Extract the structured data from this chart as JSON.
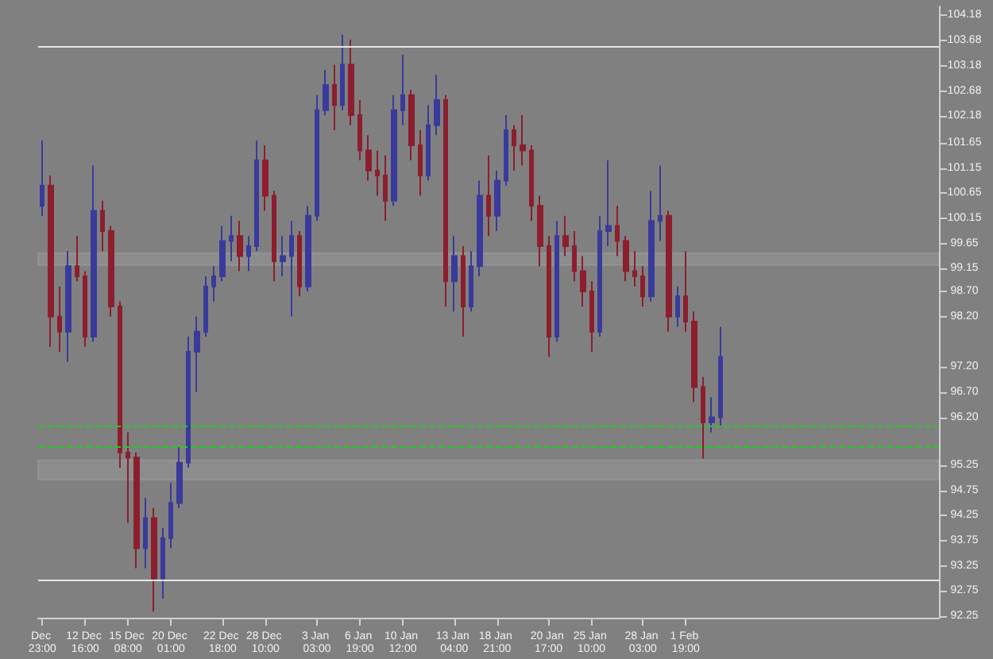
{
  "chart_data": {
    "type": "candlestick",
    "categories": [
      "Dec 23:00",
      null,
      null,
      null,
      null,
      "12 Dec 16:00",
      null,
      null,
      null,
      null,
      "15 Dec 08:00",
      null,
      null,
      null,
      null,
      "20 Dec 01:00",
      null,
      null,
      null,
      null,
      null,
      "22 Dec 18:00",
      null,
      null,
      null,
      null,
      "28 Dec 10:00",
      null,
      null,
      null,
      null,
      null,
      "3 Jan 03:00",
      null,
      null,
      null,
      null,
      "6 Jan 19:00",
      null,
      null,
      null,
      null,
      "10 Jan 12:00",
      null,
      null,
      null,
      null,
      null,
      "13 Jan 04:00",
      null,
      null,
      null,
      null,
      "18 Jan 21:00",
      null,
      null,
      null,
      null,
      null,
      "20 Jan 17:00",
      null,
      null,
      null,
      null,
      "25 Jan 10:00",
      null,
      null,
      null,
      null,
      null,
      "28 Jan 03:00",
      null,
      null,
      null,
      null,
      "1 Feb 19:00",
      null,
      null,
      null,
      null,
      null,
      null,
      null,
      null,
      null,
      null,
      null,
      null,
      null,
      null,
      null,
      null,
      null,
      null,
      null,
      null,
      null,
      null,
      null,
      null,
      null,
      null,
      null,
      null,
      null
    ],
    "ohlc": [
      [
        100.4,
        101.7,
        100.2,
        100.8
      ],
      [
        100.8,
        101.0,
        97.6,
        98.2
      ],
      [
        98.2,
        98.8,
        97.5,
        97.9
      ],
      [
        97.9,
        99.5,
        97.3,
        99.2
      ],
      [
        99.2,
        99.8,
        98.9,
        99.0
      ],
      [
        99.0,
        99.1,
        97.6,
        97.8
      ],
      [
        97.8,
        101.2,
        97.7,
        100.3
      ],
      [
        100.3,
        100.5,
        99.5,
        99.9
      ],
      [
        99.9,
        100.0,
        98.2,
        98.4
      ],
      [
        98.4,
        98.5,
        95.2,
        95.5
      ],
      [
        95.5,
        95.9,
        94.1,
        95.4
      ],
      [
        95.4,
        95.5,
        93.2,
        93.6
      ],
      [
        93.6,
        94.6,
        93.2,
        94.2
      ],
      [
        94.2,
        94.4,
        92.34,
        93.0
      ],
      [
        93.0,
        94.0,
        92.6,
        93.8
      ],
      [
        93.8,
        94.9,
        93.6,
        94.5
      ],
      [
        94.5,
        95.6,
        94.4,
        95.3
      ],
      [
        95.3,
        97.8,
        95.2,
        97.5
      ],
      [
        97.5,
        98.2,
        96.7,
        97.9
      ],
      [
        97.9,
        99.0,
        97.8,
        98.8
      ],
      [
        98.8,
        99.2,
        98.5,
        99.0
      ],
      [
        99.0,
        100.0,
        98.9,
        99.7
      ],
      [
        99.7,
        100.2,
        99.3,
        99.8
      ],
      [
        99.8,
        100.1,
        99.1,
        99.4
      ],
      [
        99.4,
        99.8,
        99.1,
        99.6
      ],
      [
        99.6,
        101.7,
        99.5,
        101.3
      ],
      [
        101.3,
        101.6,
        100.3,
        100.6
      ],
      [
        100.6,
        100.7,
        98.9,
        99.3
      ],
      [
        99.3,
        99.8,
        99.0,
        99.4
      ],
      [
        99.4,
        100.1,
        98.2,
        99.8
      ],
      [
        99.8,
        99.9,
        98.6,
        98.8
      ],
      [
        98.8,
        100.4,
        98.7,
        100.2
      ],
      [
        100.2,
        102.6,
        100.1,
        102.3
      ],
      [
        102.3,
        103.1,
        102.2,
        102.8
      ],
      [
        102.8,
        103.2,
        101.9,
        102.4
      ],
      [
        102.4,
        103.8,
        102.3,
        103.2
      ],
      [
        103.2,
        103.7,
        102.0,
        102.2
      ],
      [
        102.2,
        102.5,
        101.3,
        101.5
      ],
      [
        101.5,
        101.8,
        100.9,
        101.1
      ],
      [
        101.1,
        101.5,
        100.6,
        101.0
      ],
      [
        101.0,
        101.4,
        100.1,
        100.5
      ],
      [
        100.5,
        102.6,
        100.4,
        102.3
      ],
      [
        102.3,
        103.4,
        102.0,
        102.6
      ],
      [
        102.6,
        102.7,
        101.3,
        101.6
      ],
      [
        101.6,
        101.9,
        100.6,
        101.0
      ],
      [
        101.0,
        102.4,
        100.9,
        102.0
      ],
      [
        102.0,
        103.0,
        101.8,
        102.5
      ],
      [
        102.5,
        102.6,
        98.4,
        98.9
      ],
      [
        98.9,
        99.8,
        98.3,
        99.4
      ],
      [
        99.4,
        99.6,
        97.8,
        98.4
      ],
      [
        98.4,
        99.5,
        98.3,
        99.2
      ],
      [
        99.2,
        100.9,
        99.0,
        100.6
      ],
      [
        100.6,
        101.4,
        99.8,
        100.2
      ],
      [
        100.2,
        101.1,
        99.9,
        100.9
      ],
      [
        100.9,
        102.2,
        100.8,
        101.9
      ],
      [
        101.9,
        102.0,
        101.1,
        101.6
      ],
      [
        101.6,
        102.2,
        101.2,
        101.5
      ],
      [
        101.5,
        101.6,
        100.1,
        100.4
      ],
      [
        100.4,
        100.6,
        99.2,
        99.6
      ],
      [
        99.6,
        99.8,
        97.4,
        97.8
      ],
      [
        97.8,
        100.1,
        97.7,
        99.8
      ],
      [
        99.8,
        100.2,
        99.4,
        99.6
      ],
      [
        99.6,
        99.9,
        98.9,
        99.1
      ],
      [
        99.1,
        99.4,
        98.4,
        98.7
      ],
      [
        98.7,
        98.9,
        97.5,
        97.9
      ],
      [
        97.9,
        100.2,
        97.8,
        99.9
      ],
      [
        99.9,
        101.3,
        99.6,
        100.0
      ],
      [
        100.0,
        100.4,
        99.4,
        99.7
      ],
      [
        99.7,
        99.8,
        98.9,
        99.1
      ],
      [
        99.1,
        99.5,
        98.8,
        99.0
      ],
      [
        99.0,
        99.2,
        98.4,
        98.6
      ],
      [
        98.6,
        100.7,
        98.5,
        100.1
      ],
      [
        100.1,
        101.2,
        99.7,
        100.2
      ],
      [
        100.2,
        100.3,
        97.9,
        98.2
      ],
      [
        98.2,
        98.8,
        98.0,
        98.6
      ],
      [
        98.6,
        99.5,
        97.9,
        98.1
      ],
      [
        98.1,
        98.3,
        96.5,
        96.8
      ],
      [
        96.8,
        97.0,
        95.38,
        96.1
      ],
      [
        96.1,
        96.6,
        95.9,
        96.2
      ],
      [
        96.2,
        98.0,
        96.0,
        97.4
      ],
      null,
      null,
      null,
      null,
      null,
      null,
      null,
      null,
      null,
      null,
      null,
      null,
      null,
      null,
      null,
      null,
      null,
      null,
      null,
      null,
      null,
      null,
      null,
      null,
      null
    ],
    "colors": [
      "#3a3a9c",
      "#8c1e2e",
      "#8c1e2e",
      "#3a3a9c",
      "#8c1e2e",
      "#8c1e2e",
      "#3a3a9c",
      "#8c1e2e",
      "#8c1e2e",
      "#8c1e2e",
      "#8c1e2e",
      "#8c1e2e",
      "#3a3a9c",
      "#8c1e2e",
      "#3a3a9c",
      "#3a3a9c",
      "#3a3a9c",
      "#3a3a9c",
      "#3a3a9c",
      "#3a3a9c",
      "#3a3a9c",
      "#3a3a9c",
      "#3a3a9c",
      "#8c1e2e",
      "#3a3a9c",
      "#3a3a9c",
      "#8c1e2e",
      "#8c1e2e",
      "#3a3a9c",
      "#3a3a9c",
      "#8c1e2e",
      "#3a3a9c",
      "#3a3a9c",
      "#3a3a9c",
      "#8c1e2e",
      "#3a3a9c",
      "#8c1e2e",
      "#8c1e2e",
      "#8c1e2e",
      "#8c1e2e",
      "#8c1e2e",
      "#3a3a9c",
      "#3a3a9c",
      "#8c1e2e",
      "#8c1e2e",
      "#3a3a9c",
      "#3a3a9c",
      "#8c1e2e",
      "#3a3a9c",
      "#8c1e2e",
      "#3a3a9c",
      "#3a3a9c",
      "#8c1e2e",
      "#3a3a9c",
      "#3a3a9c",
      "#8c1e2e",
      "#8c1e2e",
      "#8c1e2e",
      "#8c1e2e",
      "#8c1e2e",
      "#3a3a9c",
      "#8c1e2e",
      "#8c1e2e",
      "#8c1e2e",
      "#8c1e2e",
      "#3a3a9c",
      "#3a3a9c",
      "#8c1e2e",
      "#8c1e2e",
      "#8c1e2e",
      "#8c1e2e",
      "#3a3a9c",
      "#3a3a9c",
      "#8c1e2e",
      "#3a3a9c",
      "#8c1e2e",
      "#8c1e2e",
      "#8c1e2e",
      "#3a3a9c",
      "#3a3a9c",
      null,
      null,
      null,
      null,
      null,
      null,
      null,
      null,
      null,
      null,
      null,
      null,
      null,
      null,
      null,
      null,
      null,
      null,
      null,
      null,
      null,
      null,
      null,
      null,
      null
    ],
    "ylim": [
      92.22,
      104.36
    ],
    "yticks": [
      {
        "value": 92.25,
        "label": "92.25"
      },
      {
        "value": 92.75,
        "label": "92.75"
      },
      {
        "value": 93.25,
        "label": "93.25"
      },
      {
        "value": 93.75,
        "label": "93.75"
      },
      {
        "value": 94.25,
        "label": "94.25"
      },
      {
        "value": 94.75,
        "label": "94.75"
      },
      {
        "value": 95.25,
        "label": "95.25"
      },
      {
        "value": 96.2,
        "label": "96.20"
      },
      {
        "value": 96.7,
        "label": "96.70"
      },
      {
        "value": 97.2,
        "label": "97.20"
      },
      {
        "value": 98.2,
        "label": "98.20"
      },
      {
        "value": 98.7,
        "label": "98.70"
      },
      {
        "value": 99.15,
        "label": "99.15"
      },
      {
        "value": 99.65,
        "label": "99.65"
      },
      {
        "value": 100.15,
        "label": "100.15"
      },
      {
        "value": 100.65,
        "label": "100.65"
      },
      {
        "value": 101.15,
        "label": "101.15"
      },
      {
        "value": 101.65,
        "label": "101.65"
      },
      {
        "value": 102.18,
        "label": "102.18"
      },
      {
        "value": 102.68,
        "label": "102.68"
      },
      {
        "value": 103.18,
        "label": "103.18"
      },
      {
        "value": 103.68,
        "label": "103.68"
      },
      {
        "value": 104.18,
        "label": "104.18"
      }
    ],
    "ref_lines": [
      {
        "axis": "y",
        "value": 103.57,
        "color": "#e6e6e6",
        "line_style": "solid"
      },
      {
        "axis": "y",
        "value": 92.98,
        "color": "#e6e6e6",
        "line_style": "solid"
      },
      {
        "axis": "y",
        "value": 96.04,
        "color": "#22cc22",
        "line_style": "dashed"
      },
      {
        "axis": "y",
        "value": 95.61,
        "color": "#22cc22",
        "line_style": "dashed"
      }
    ],
    "bands": [
      {
        "axis": "y",
        "from": 99.22,
        "to": 99.46,
        "color": "#e6e6e6"
      },
      {
        "axis": "y",
        "from": 94.96,
        "to": 95.35,
        "color": "#e6e6e6"
      }
    ]
  }
}
